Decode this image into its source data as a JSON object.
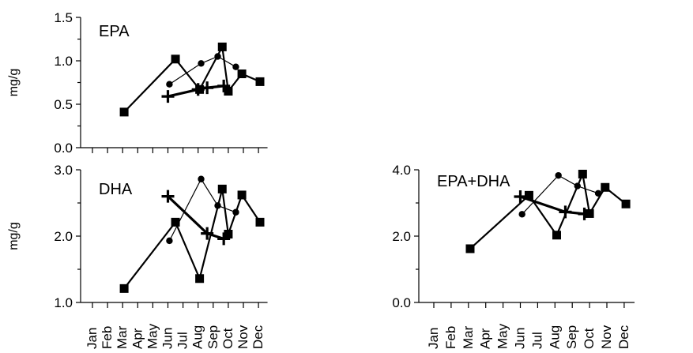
{
  "chart_data": [
    {
      "type": "line",
      "title": "EPA",
      "ylabel": "mg/g",
      "ylim": [
        0,
        1.5
      ],
      "y_ticks": [
        "0.0",
        "0.5",
        "1.0",
        "1.5"
      ],
      "x_ticks": [],
      "series": [
        {
          "marker": "square",
          "points": [
            [
              3.1,
              0.41
            ],
            [
              6.5,
              1.02
            ],
            [
              8.1,
              0.67
            ],
            [
              9.6,
              1.16
            ],
            [
              10.0,
              0.65
            ],
            [
              10.9,
              0.85
            ],
            [
              12.1,
              0.76
            ]
          ]
        },
        {
          "marker": "circle",
          "points": [
            [
              6.1,
              0.73
            ],
            [
              8.2,
              0.97
            ],
            [
              9.3,
              1.05
            ],
            [
              10.5,
              0.93
            ]
          ]
        },
        {
          "marker": "plus",
          "points": [
            [
              6.0,
              0.59
            ],
            [
              8.0,
              0.67
            ],
            [
              8.6,
              0.69
            ],
            [
              9.7,
              0.71
            ]
          ]
        }
      ]
    },
    {
      "type": "line",
      "title": "DHA",
      "ylabel": "mg/g",
      "ylim": [
        1,
        3
      ],
      "y_ticks": [
        "1.0",
        "2.0",
        "3.0"
      ],
      "x_ticks": [
        "Jan",
        "Feb",
        "Mar",
        "Apr",
        "May",
        "Jun",
        "Jul",
        "Aug",
        "Sep",
        "Oct",
        "Nov",
        "Dec"
      ],
      "series": [
        {
          "marker": "square",
          "points": [
            [
              3.1,
              1.21
            ],
            [
              6.5,
              2.21
            ],
            [
              8.1,
              1.36
            ],
            [
              9.6,
              2.71
            ],
            [
              10.0,
              2.03
            ],
            [
              10.9,
              2.62
            ],
            [
              12.1,
              2.21
            ]
          ]
        },
        {
          "marker": "circle",
          "points": [
            [
              6.1,
              1.93
            ],
            [
              8.2,
              2.86
            ],
            [
              9.3,
              2.46
            ],
            [
              10.5,
              2.36
            ]
          ]
        },
        {
          "marker": "plus",
          "points": [
            [
              6.0,
              2.6
            ],
            [
              8.6,
              2.04
            ],
            [
              9.7,
              1.96
            ]
          ]
        }
      ]
    },
    {
      "type": "line",
      "title": "EPA+DHA",
      "ylabel": "",
      "ylim": [
        0,
        4
      ],
      "y_ticks": [
        "0.0",
        "2.0",
        "4.0"
      ],
      "x_ticks": [
        "Jan",
        "Feb",
        "Mar",
        "Apr",
        "May",
        "Jun",
        "Jul",
        "Aug",
        "Sep",
        "Oct",
        "Nov",
        "Dec"
      ],
      "series": [
        {
          "marker": "square",
          "points": [
            [
              3.1,
              1.62
            ],
            [
              6.5,
              3.23
            ],
            [
              8.1,
              2.03
            ],
            [
              9.6,
              3.87
            ],
            [
              10.0,
              2.68
            ],
            [
              10.9,
              3.47
            ],
            [
              12.1,
              2.97
            ]
          ]
        },
        {
          "marker": "circle",
          "points": [
            [
              6.1,
              2.66
            ],
            [
              8.2,
              3.83
            ],
            [
              9.3,
              3.51
            ],
            [
              10.5,
              3.29
            ]
          ]
        },
        {
          "marker": "plus",
          "points": [
            [
              6.0,
              3.19
            ],
            [
              8.6,
              2.73
            ],
            [
              9.7,
              2.67
            ]
          ]
        }
      ]
    }
  ]
}
